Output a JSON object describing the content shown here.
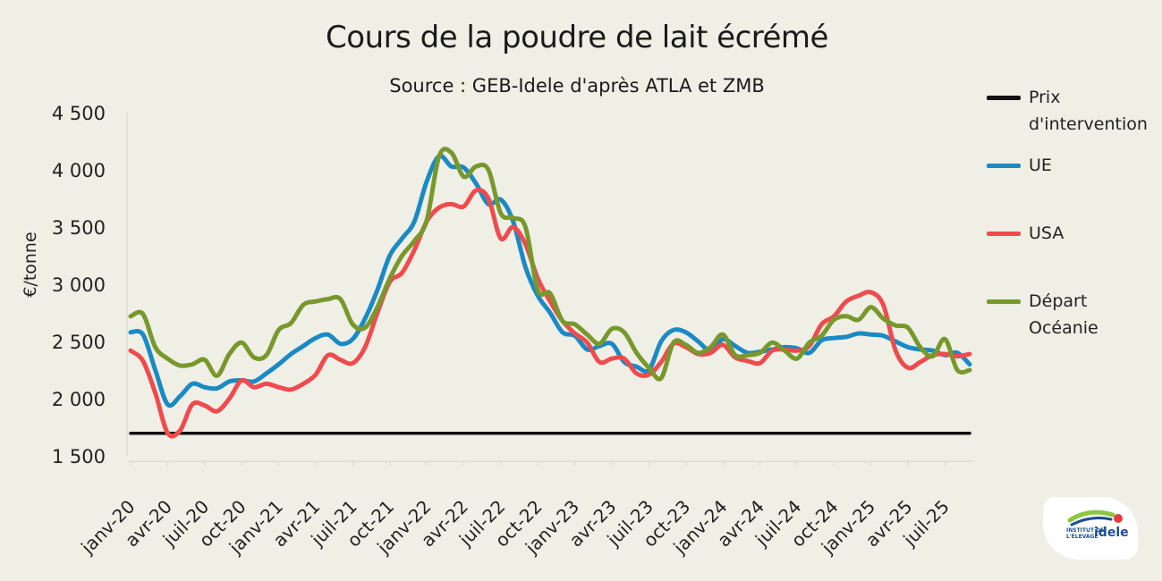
{
  "chart_data": {
    "type": "line",
    "title": "Cours de la poudre de lait écrémé",
    "subtitle": "Source : GEB-Idele d'après ATLA et ZMB",
    "ylabel": "€/tonne",
    "xlabel": "",
    "ylim": [
      1500,
      4500
    ],
    "yticks": [
      "1 500",
      "2 000",
      "2 500",
      "3 000",
      "3 500",
      "4 000",
      "4 500"
    ],
    "ytick_values": [
      1500,
      2000,
      2500,
      3000,
      3500,
      4000,
      4500
    ],
    "xtick_labels": [
      "janv-20",
      "avr-20",
      "juil-20",
      "oct-20",
      "janv-21",
      "avr-21",
      "juil-21",
      "oct-21",
      "janv-22",
      "avr-22",
      "juil-22",
      "oct-22",
      "janv-23",
      "avr-23",
      "juil-23",
      "oct-23",
      "janv-24",
      "avr-24",
      "juil-24",
      "oct-24",
      "janv-25",
      "avr-25",
      "juil-25"
    ],
    "x": [
      "janv-20",
      "févr-20",
      "mars-20",
      "avr-20",
      "mai-20",
      "juin-20",
      "juil-20",
      "août-20",
      "sept-20",
      "oct-20",
      "nov-20",
      "déc-20",
      "janv-21",
      "févr-21",
      "mars-21",
      "avr-21",
      "mai-21",
      "juin-21",
      "juil-21",
      "août-21",
      "sept-21",
      "oct-21",
      "nov-21",
      "déc-21",
      "janv-22",
      "févr-22",
      "mars-22",
      "avr-22",
      "mai-22",
      "juin-22",
      "juil-22",
      "août-22",
      "sept-22",
      "oct-22",
      "nov-22",
      "déc-22",
      "janv-23",
      "févr-23",
      "mars-23",
      "avr-23",
      "mai-23",
      "juin-23",
      "juil-23",
      "août-23",
      "sept-23",
      "oct-23",
      "nov-23",
      "déc-23",
      "janv-24",
      "févr-24",
      "mars-24",
      "avr-24",
      "mai-24",
      "juin-24",
      "juil-24",
      "août-24",
      "sept-24",
      "oct-24",
      "nov-24",
      "déc-24",
      "janv-25",
      "févr-25",
      "mars-25",
      "avr-25",
      "mai-25",
      "juin-25",
      "juil-25",
      "août-25",
      "sept-25"
    ],
    "legend_position": "right",
    "grid": false,
    "series": [
      {
        "name": "Prix d'intervention",
        "color": "#111111",
        "values": [
          1698,
          1698,
          1698,
          1698,
          1698,
          1698,
          1698,
          1698,
          1698,
          1698,
          1698,
          1698,
          1698,
          1698,
          1698,
          1698,
          1698,
          1698,
          1698,
          1698,
          1698,
          1698,
          1698,
          1698,
          1698,
          1698,
          1698,
          1698,
          1698,
          1698,
          1698,
          1698,
          1698,
          1698,
          1698,
          1698,
          1698,
          1698,
          1698,
          1698,
          1698,
          1698,
          1698,
          1698,
          1698,
          1698,
          1698,
          1698,
          1698,
          1698,
          1698,
          1698,
          1698,
          1698,
          1698,
          1698,
          1698,
          1698,
          1698,
          1698,
          1698,
          1698,
          1698,
          1698,
          1698,
          1698,
          1698,
          1698,
          1698
        ]
      },
      {
        "name": "UE",
        "color": "#1a8ac4",
        "values": [
          2580,
          2560,
          2250,
          1950,
          2020,
          2130,
          2100,
          2090,
          2150,
          2160,
          2150,
          2220,
          2300,
          2390,
          2460,
          2530,
          2560,
          2480,
          2520,
          2700,
          2950,
          3250,
          3400,
          3550,
          3900,
          4120,
          4030,
          4020,
          3880,
          3700,
          3740,
          3550,
          3150,
          2900,
          2750,
          2580,
          2550,
          2430,
          2460,
          2480,
          2320,
          2280,
          2250,
          2500,
          2600,
          2580,
          2500,
          2420,
          2520,
          2460,
          2400,
          2410,
          2430,
          2450,
          2440,
          2400,
          2510,
          2530,
          2540,
          2570,
          2560,
          2550,
          2500,
          2450,
          2430,
          2420,
          2380,
          2400,
          2300
        ]
      },
      {
        "name": "USA",
        "color": "#ef4b4e",
        "values": [
          2420,
          2330,
          2050,
          1700,
          1720,
          1950,
          1940,
          1890,
          2000,
          2160,
          2100,
          2130,
          2100,
          2080,
          2130,
          2210,
          2380,
          2340,
          2310,
          2450,
          2750,
          3020,
          3100,
          3300,
          3550,
          3670,
          3700,
          3680,
          3820,
          3750,
          3400,
          3500,
          3350,
          3050,
          2850,
          2680,
          2570,
          2490,
          2320,
          2350,
          2350,
          2220,
          2210,
          2320,
          2480,
          2450,
          2390,
          2400,
          2470,
          2360,
          2330,
          2310,
          2420,
          2430,
          2420,
          2460,
          2650,
          2720,
          2850,
          2900,
          2930,
          2820,
          2420,
          2270,
          2320,
          2380,
          2390,
          2370,
          2390
        ]
      },
      {
        "name": "Départ Océanie",
        "color": "#78982c",
        "values": [
          2720,
          2740,
          2450,
          2350,
          2290,
          2300,
          2340,
          2200,
          2390,
          2490,
          2360,
          2380,
          2600,
          2660,
          2820,
          2850,
          2870,
          2870,
          2650,
          2620,
          2800,
          3050,
          3250,
          3380,
          3560,
          4120,
          4150,
          3940,
          4030,
          4000,
          3620,
          3580,
          3500,
          2950,
          2920,
          2680,
          2650,
          2560,
          2480,
          2610,
          2580,
          2400,
          2270,
          2180,
          2490,
          2470,
          2400,
          2450,
          2560,
          2380,
          2380,
          2400,
          2490,
          2420,
          2350,
          2490,
          2550,
          2690,
          2720,
          2690,
          2800,
          2700,
          2640,
          2620,
          2450,
          2370,
          2520,
          2250,
          2250
        ]
      }
    ]
  },
  "logo": {
    "text_small_1": "INSTITUT DE",
    "text_small_2": "L'ÉLEVAGE",
    "text_big": "idele"
  }
}
